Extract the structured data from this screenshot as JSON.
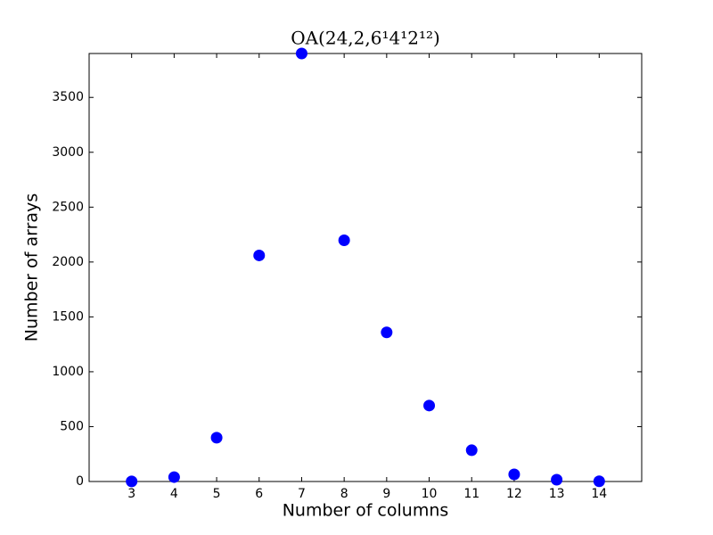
{
  "chart_data": {
    "type": "scatter",
    "title": "OA(24,2,6¹4¹2¹²)",
    "x_label": "Number of columns",
    "y_label": "Number of arrays",
    "x": [
      3,
      4,
      5,
      6,
      7,
      8,
      9,
      10,
      11,
      12,
      13,
      14
    ],
    "values": [
      1,
      40,
      399,
      2060,
      3900,
      2198,
      1359,
      692,
      285,
      65,
      16,
      2
    ],
    "color": "#0000ff",
    "xlim": [
      2,
      15
    ],
    "xticks": [
      3,
      4,
      5,
      6,
      7,
      8,
      9,
      10,
      11,
      12,
      13,
      14
    ],
    "ylim": [
      0,
      3900
    ],
    "yticks": [
      0,
      500,
      1000,
      1500,
      2000,
      2500,
      3000,
      3500
    ]
  }
}
